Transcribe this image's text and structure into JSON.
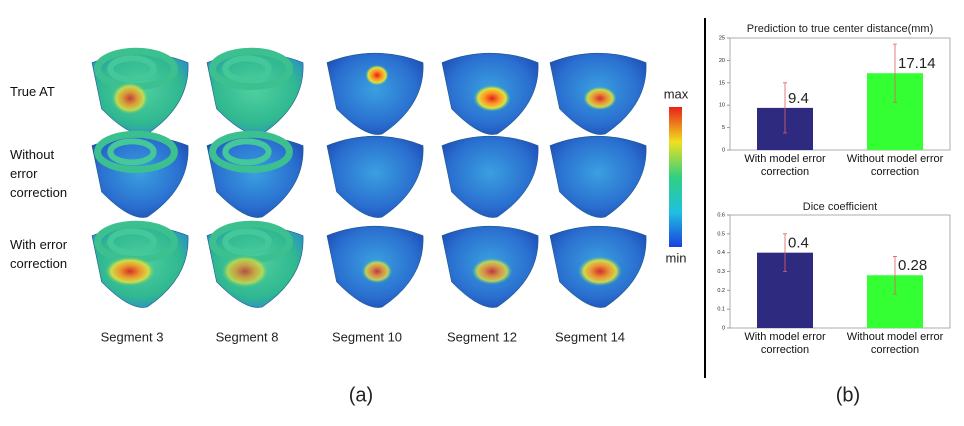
{
  "panel_a": {
    "row_labels": [
      "True AT",
      "Without error correction",
      "With error correction"
    ],
    "column_labels": [
      "Segment 3",
      "Segment 8",
      "Segment 10",
      "Segment 12",
      "Segment 14"
    ],
    "colorbar_max": "max",
    "colorbar_min": "min",
    "caption": "(a)"
  },
  "caption_b": "(b)",
  "chart_data": [
    {
      "type": "bar",
      "title": "Prediction to true center distance(mm)",
      "categories": [
        "With model error correction",
        "Without model error correction"
      ],
      "values": [
        9.4,
        17.14
      ],
      "errors": [
        5.6,
        6.5
      ],
      "colors": [
        "#2e2a7f",
        "#33ff33"
      ],
      "error_color": "#e06060",
      "ylim": [
        0,
        25
      ],
      "yticks": [
        0,
        5,
        10,
        15,
        20,
        25
      ]
    },
    {
      "type": "bar",
      "title": "Dice coefficient",
      "categories": [
        "With model error correction",
        "Without model error correction"
      ],
      "values": [
        0.4,
        0.28
      ],
      "errors": [
        0.1,
        0.1
      ],
      "colors": [
        "#2e2a7f",
        "#33ff33"
      ],
      "error_color": "#e06060",
      "ylim": [
        0,
        0.6
      ],
      "yticks": [
        0,
        0.1,
        0.2,
        0.3,
        0.4,
        0.5,
        0.6
      ]
    }
  ]
}
